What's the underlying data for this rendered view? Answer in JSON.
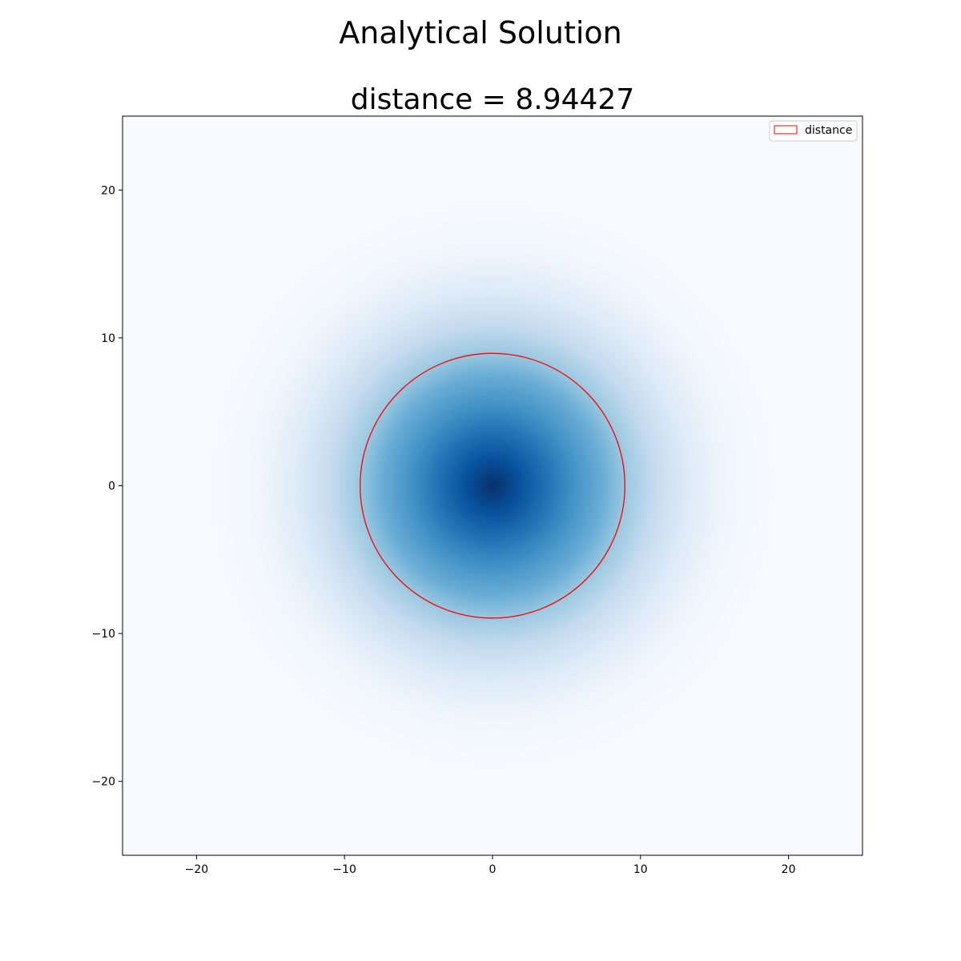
{
  "figure": {
    "suptitle": "Analytical Solution"
  },
  "chart_data": {
    "type": "heatmap",
    "title": "distance = 8.94427",
    "xlabel": "",
    "ylabel": "",
    "xlim": [
      -25,
      25
    ],
    "ylim": [
      -25,
      25
    ],
    "x_ticks": [
      -20,
      -10,
      0,
      10,
      20
    ],
    "y_ticks": [
      -20,
      -10,
      0,
      10,
      20
    ],
    "x_tick_labels": [
      "−20",
      "−10",
      "0",
      "10",
      "20"
    ],
    "y_tick_labels": [
      "−20",
      "−10",
      "0",
      "10",
      "20"
    ],
    "grid": false,
    "colormap": "Blues",
    "field": {
      "description": "radially symmetric Gaussian intensity centered at origin",
      "center": [
        0,
        0
      ],
      "sigma": 8.94427
    },
    "circle": {
      "center": [
        0,
        0
      ],
      "radius": 8.94427,
      "color": "#ff0000",
      "label": "distance"
    },
    "legend": {
      "placement": "top-right",
      "entries": [
        {
          "label": "distance",
          "color": "#ff0000"
        }
      ]
    }
  }
}
